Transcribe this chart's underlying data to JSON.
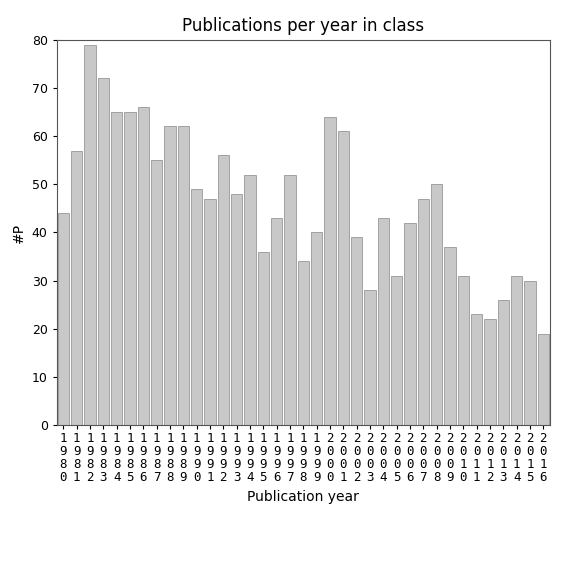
{
  "title": "Publications per year in class",
  "xlabel": "Publication year",
  "ylabel": "#P",
  "years": [
    "1980",
    "1981",
    "1982",
    "1983",
    "1984",
    "1985",
    "1986",
    "1987",
    "1988",
    "1989",
    "1990",
    "1991",
    "1992",
    "1993",
    "1994",
    "1995",
    "1996",
    "1997",
    "1998",
    "1999",
    "2000",
    "2001",
    "2002",
    "2003",
    "2004",
    "2005",
    "2006",
    "2007",
    "2008",
    "2009",
    "2010",
    "2011",
    "2012",
    "2013",
    "2014",
    "2015",
    "2016"
  ],
  "values": [
    44,
    57,
    79,
    72,
    65,
    65,
    66,
    55,
    62,
    62,
    49,
    47,
    56,
    48,
    52,
    36,
    43,
    52,
    34,
    40,
    64,
    61,
    39,
    28,
    43,
    31,
    42,
    47,
    50,
    37,
    31,
    23,
    22,
    26,
    31,
    30,
    19
  ],
  "bar_color": "#c8c8c8",
  "bar_edgecolor": "#888888",
  "ylim": [
    0,
    80
  ],
  "yticks": [
    0,
    10,
    20,
    30,
    40,
    50,
    60,
    70,
    80
  ],
  "background_color": "#ffffff",
  "title_fontsize": 12,
  "label_fontsize": 10,
  "tick_fontsize": 9
}
